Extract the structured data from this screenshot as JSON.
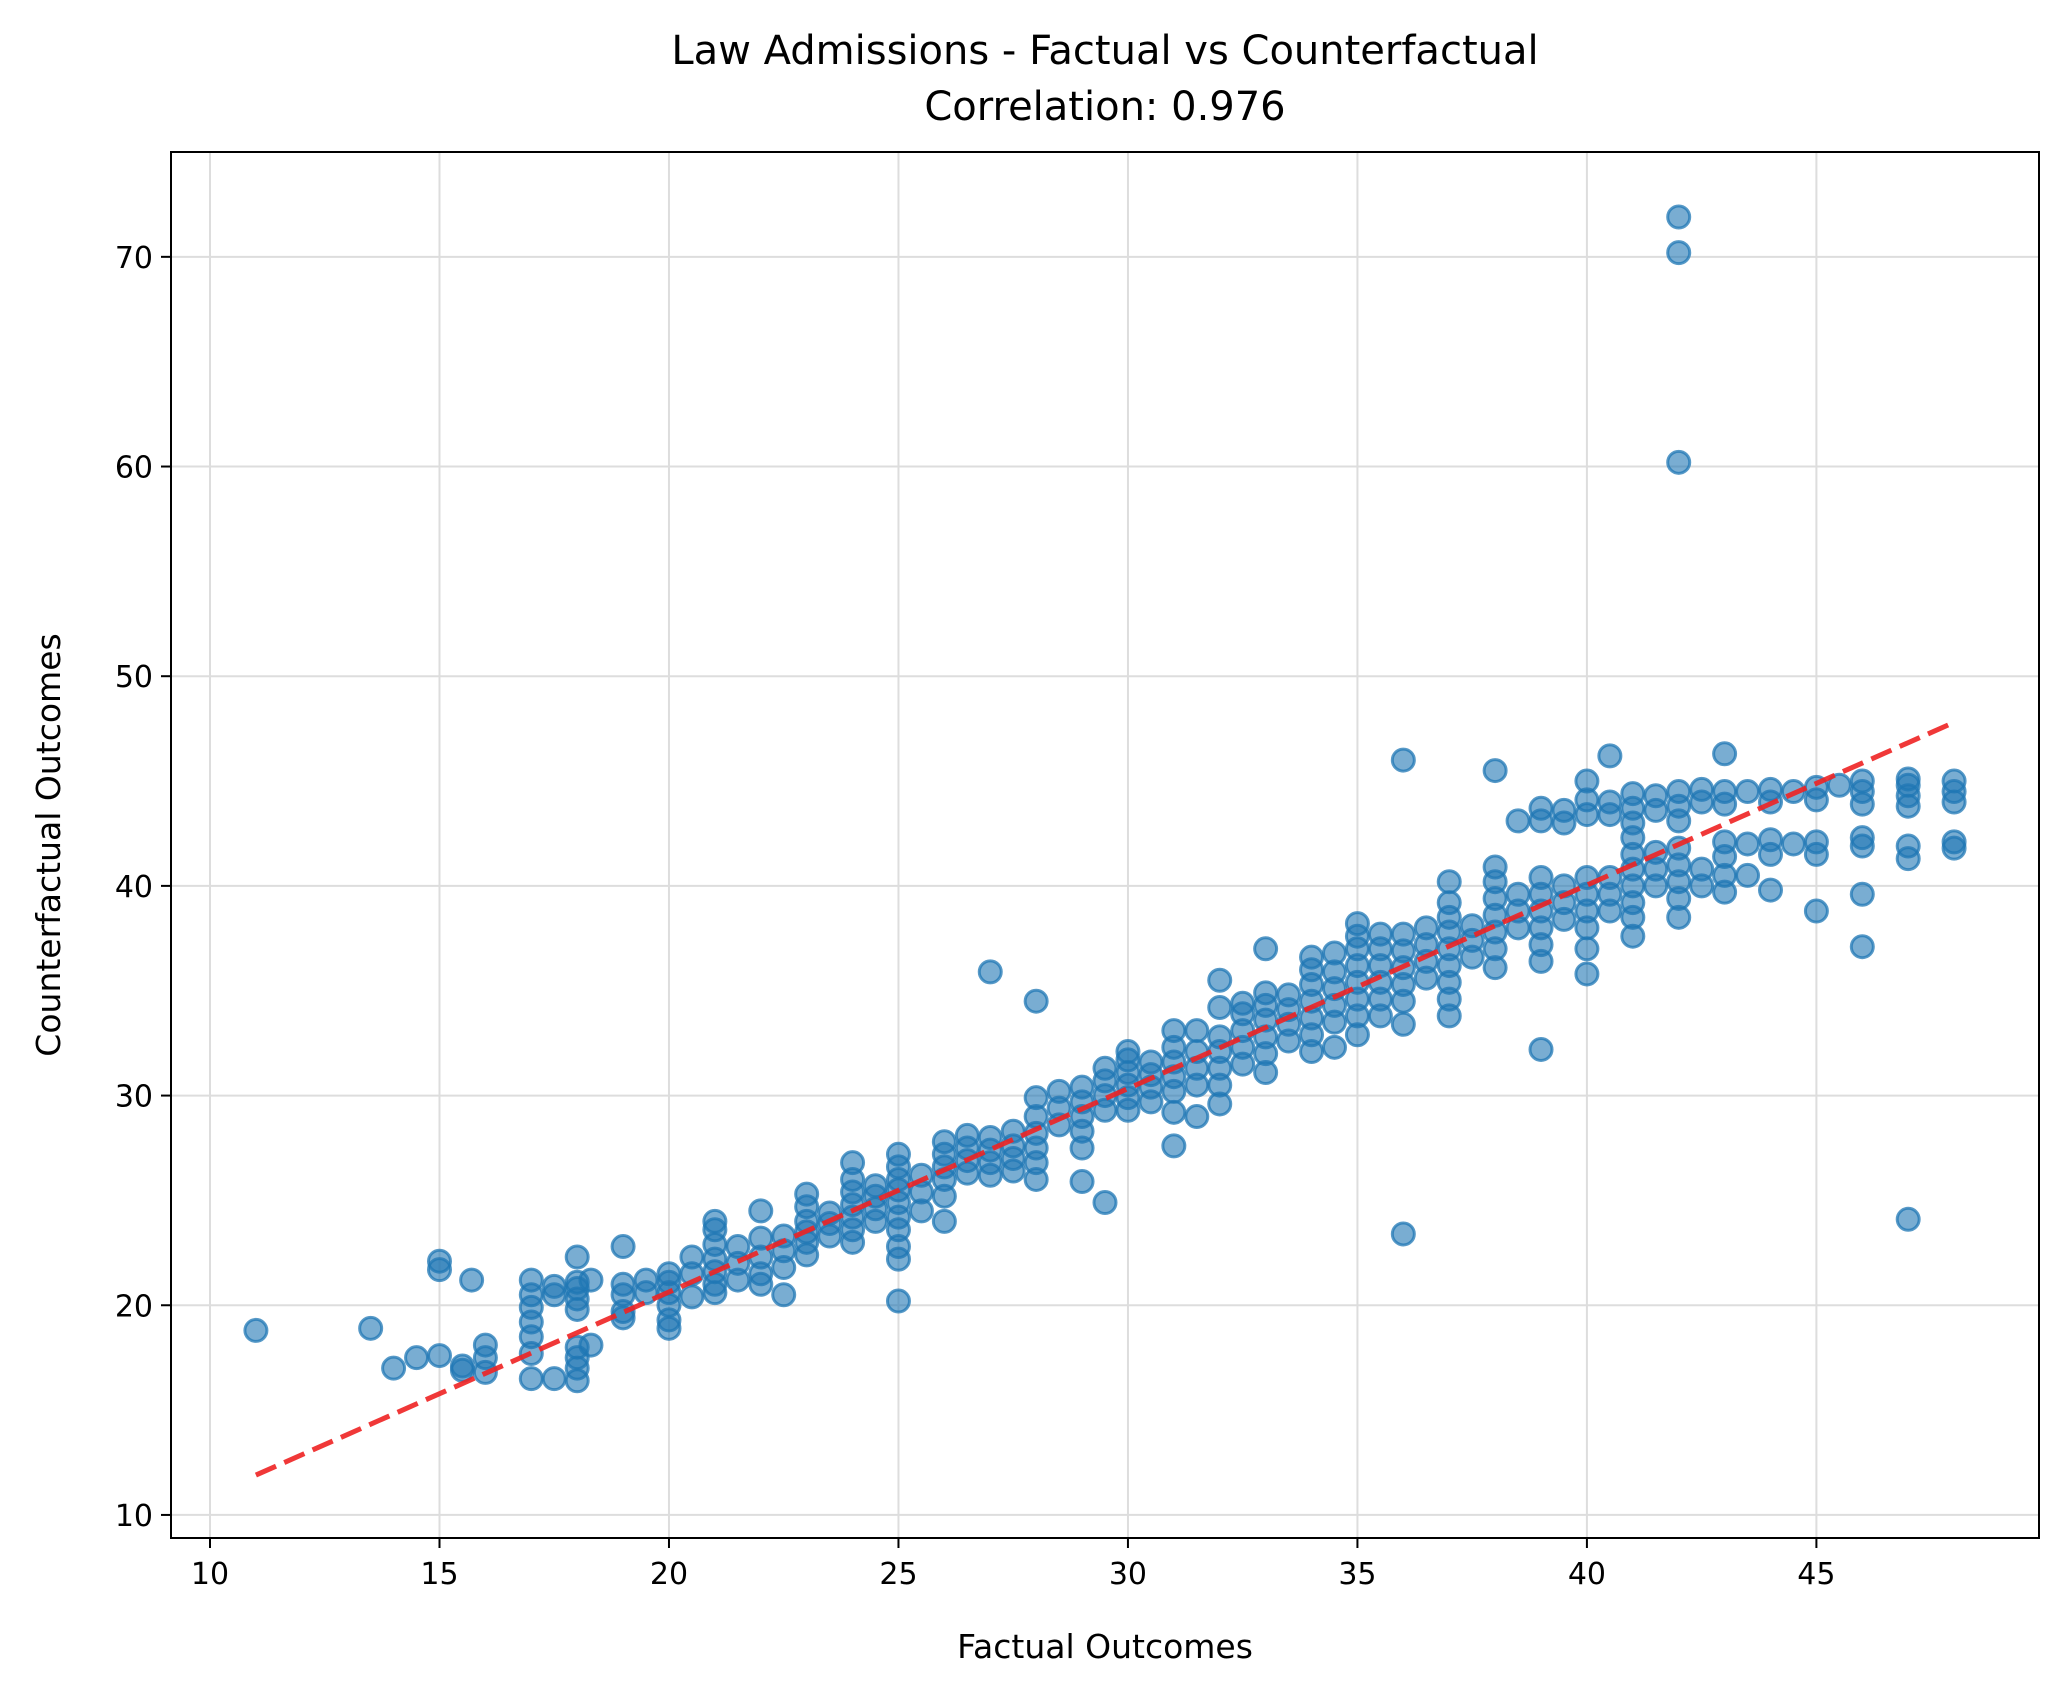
{
  "chart_data": {
    "type": "scatter",
    "title": "Law Admissions - Factual vs Counterfactual",
    "subtitle": "Correlation: 0.976",
    "xlabel": "Factual Outcomes",
    "ylabel": "Counterfactual Outcomes",
    "xlim": [
      9.15,
      49.85
    ],
    "ylim": [
      8.9,
      75.0
    ],
    "x_ticks": [
      10,
      15,
      20,
      25,
      30,
      35,
      40,
      45
    ],
    "y_ticks": [
      10,
      20,
      30,
      40,
      50,
      60,
      70
    ],
    "x_tick_labels": [
      "10",
      "15",
      "20",
      "25",
      "30",
      "35",
      "40",
      "45"
    ],
    "y_tick_labels": [
      "10",
      "20",
      "30",
      "40",
      "50",
      "60",
      "70"
    ],
    "grid": true,
    "colors": {
      "points": "#1f77b4",
      "fit_line": "#ee2222"
    },
    "fit_line": {
      "x": [
        11,
        48
      ],
      "y": [
        11.9,
        47.8
      ],
      "style": "dashed"
    },
    "points": [
      [
        11,
        18.8
      ],
      [
        13.5,
        18.9
      ],
      [
        14,
        17.0
      ],
      [
        14.5,
        17.5
      ],
      [
        15,
        17.6
      ],
      [
        15,
        21.7
      ],
      [
        15,
        22.1
      ],
      [
        15.5,
        17.1
      ],
      [
        15.5,
        16.9
      ],
      [
        15.7,
        21.2
      ],
      [
        16,
        16.8
      ],
      [
        16,
        17.5
      ],
      [
        16,
        18.1
      ],
      [
        17,
        16.5
      ],
      [
        17,
        17.7
      ],
      [
        17,
        18.5
      ],
      [
        17,
        19.2
      ],
      [
        17,
        19.9
      ],
      [
        17,
        20.5
      ],
      [
        17,
        21.2
      ],
      [
        17.5,
        16.5
      ],
      [
        17.5,
        20.5
      ],
      [
        17.5,
        20.9
      ],
      [
        18,
        16.4
      ],
      [
        18,
        17.0
      ],
      [
        18,
        17.5
      ],
      [
        18,
        18.0
      ],
      [
        18,
        19.8
      ],
      [
        18,
        20.3
      ],
      [
        18,
        20.8
      ],
      [
        18,
        21.1
      ],
      [
        18,
        22.3
      ],
      [
        18.3,
        18.1
      ],
      [
        18.3,
        21.2
      ],
      [
        19,
        19.4
      ],
      [
        19,
        19.7
      ],
      [
        19,
        20.5
      ],
      [
        19,
        21.0
      ],
      [
        19,
        22.8
      ],
      [
        19.5,
        20.6
      ],
      [
        19.5,
        21.2
      ],
      [
        20,
        18.9
      ],
      [
        20,
        19.3
      ],
      [
        20,
        20.0
      ],
      [
        20,
        20.6
      ],
      [
        20,
        21.1
      ],
      [
        20,
        21.5
      ],
      [
        20.5,
        20.4
      ],
      [
        20.5,
        21.5
      ],
      [
        20.5,
        22.3
      ],
      [
        21,
        20.6
      ],
      [
        21,
        21.0
      ],
      [
        21,
        21.6
      ],
      [
        21,
        22.2
      ],
      [
        21,
        22.9
      ],
      [
        21,
        23.6
      ],
      [
        21,
        24.0
      ],
      [
        21.5,
        21.2
      ],
      [
        21.5,
        22.0
      ],
      [
        21.5,
        22.8
      ],
      [
        22,
        21.0
      ],
      [
        22,
        21.5
      ],
      [
        22,
        22.3
      ],
      [
        22,
        23.2
      ],
      [
        22,
        24.5
      ],
      [
        22.5,
        20.5
      ],
      [
        22.5,
        21.8
      ],
      [
        22.5,
        22.6
      ],
      [
        22.5,
        23.3
      ],
      [
        23,
        22.4
      ],
      [
        23,
        23.0
      ],
      [
        23,
        23.5
      ],
      [
        23,
        24.0
      ],
      [
        23,
        24.7
      ],
      [
        23,
        25.3
      ],
      [
        23.5,
        23.3
      ],
      [
        23.5,
        23.9
      ],
      [
        23.5,
        24.4
      ],
      [
        24,
        23.0
      ],
      [
        24,
        23.6
      ],
      [
        24,
        24.2
      ],
      [
        24,
        24.8
      ],
      [
        24,
        25.4
      ],
      [
        24,
        26.0
      ],
      [
        24,
        26.8
      ],
      [
        24.5,
        24.0
      ],
      [
        24.5,
        24.6
      ],
      [
        24.5,
        25.2
      ],
      [
        24.5,
        25.7
      ],
      [
        25,
        20.2
      ],
      [
        25,
        22.2
      ],
      [
        25,
        22.8
      ],
      [
        25,
        23.6
      ],
      [
        25,
        24.2
      ],
      [
        25,
        24.9
      ],
      [
        25,
        25.5
      ],
      [
        25,
        26.0
      ],
      [
        25,
        26.6
      ],
      [
        25,
        27.2
      ],
      [
        25.5,
        24.5
      ],
      [
        25.5,
        25.4
      ],
      [
        25.5,
        26.2
      ],
      [
        26,
        24.0
      ],
      [
        26,
        25.2
      ],
      [
        26,
        26.0
      ],
      [
        26,
        26.6
      ],
      [
        26,
        27.2
      ],
      [
        26,
        27.8
      ],
      [
        26.5,
        26.3
      ],
      [
        26.5,
        26.9
      ],
      [
        26.5,
        27.5
      ],
      [
        26.5,
        28.1
      ],
      [
        27,
        26.2
      ],
      [
        27,
        26.8
      ],
      [
        27,
        27.4
      ],
      [
        27,
        28.0
      ],
      [
        27,
        35.9
      ],
      [
        27.5,
        26.4
      ],
      [
        27.5,
        27.0
      ],
      [
        27.5,
        27.6
      ],
      [
        27.5,
        28.3
      ],
      [
        28,
        26.0
      ],
      [
        28,
        26.8
      ],
      [
        28,
        27.5
      ],
      [
        28,
        28.2
      ],
      [
        28,
        29.0
      ],
      [
        28,
        29.9
      ],
      [
        28,
        34.5
      ],
      [
        28.5,
        28.6
      ],
      [
        28.5,
        29.4
      ],
      [
        28.5,
        30.2
      ],
      [
        29,
        25.9
      ],
      [
        29,
        27.5
      ],
      [
        29,
        28.3
      ],
      [
        29,
        29.0
      ],
      [
        29,
        29.7
      ],
      [
        29,
        30.4
      ],
      [
        29.5,
        24.9
      ],
      [
        29.5,
        29.3
      ],
      [
        29.5,
        30.0
      ],
      [
        29.5,
        30.7
      ],
      [
        29.5,
        31.3
      ],
      [
        30,
        29.3
      ],
      [
        30,
        29.9
      ],
      [
        30,
        30.5
      ],
      [
        30,
        31.1
      ],
      [
        30,
        31.7
      ],
      [
        30,
        32.1
      ],
      [
        30.5,
        29.7
      ],
      [
        30.5,
        30.4
      ],
      [
        30.5,
        31.0
      ],
      [
        30.5,
        31.6
      ],
      [
        31,
        27.6
      ],
      [
        31,
        29.2
      ],
      [
        31,
        30.2
      ],
      [
        31,
        30.9
      ],
      [
        31,
        31.6
      ],
      [
        31,
        32.3
      ],
      [
        31,
        33.1
      ],
      [
        31.5,
        29.0
      ],
      [
        31.5,
        30.5
      ],
      [
        31.5,
        31.3
      ],
      [
        31.5,
        32.1
      ],
      [
        31.5,
        33.1
      ],
      [
        32,
        29.6
      ],
      [
        32,
        30.5
      ],
      [
        32,
        31.3
      ],
      [
        32,
        32.1
      ],
      [
        32,
        32.8
      ],
      [
        32,
        34.2
      ],
      [
        32,
        35.5
      ],
      [
        32.5,
        31.5
      ],
      [
        32.5,
        32.3
      ],
      [
        32.5,
        33.1
      ],
      [
        32.5,
        33.9
      ],
      [
        32.5,
        34.4
      ],
      [
        33,
        31.1
      ],
      [
        33,
        32.0
      ],
      [
        33,
        32.8
      ],
      [
        33,
        33.6
      ],
      [
        33,
        34.3
      ],
      [
        33,
        34.9
      ],
      [
        33,
        37.0
      ],
      [
        33.5,
        32.6
      ],
      [
        33.5,
        33.4
      ],
      [
        33.5,
        34.1
      ],
      [
        33.5,
        34.8
      ],
      [
        34,
        32.1
      ],
      [
        34,
        32.9
      ],
      [
        34,
        33.7
      ],
      [
        34,
        34.5
      ],
      [
        34,
        35.3
      ],
      [
        34,
        36.0
      ],
      [
        34,
        36.6
      ],
      [
        34.5,
        32.3
      ],
      [
        34.5,
        33.5
      ],
      [
        34.5,
        34.3
      ],
      [
        34.5,
        35.1
      ],
      [
        34.5,
        35.9
      ],
      [
        34.5,
        36.8
      ],
      [
        35,
        32.9
      ],
      [
        35,
        33.8
      ],
      [
        35,
        34.6
      ],
      [
        35,
        35.4
      ],
      [
        35,
        36.2
      ],
      [
        35,
        37.0
      ],
      [
        35,
        37.6
      ],
      [
        35,
        38.2
      ],
      [
        35.5,
        33.8
      ],
      [
        35.5,
        34.6
      ],
      [
        35.5,
        35.4
      ],
      [
        35.5,
        36.2
      ],
      [
        35.5,
        37.0
      ],
      [
        35.5,
        37.7
      ],
      [
        36,
        23.4
      ],
      [
        36,
        33.4
      ],
      [
        36,
        34.5
      ],
      [
        36,
        35.3
      ],
      [
        36,
        36.1
      ],
      [
        36,
        36.9
      ],
      [
        36,
        37.7
      ],
      [
        36,
        46.0
      ],
      [
        36.5,
        35.6
      ],
      [
        36.5,
        36.4
      ],
      [
        36.5,
        37.2
      ],
      [
        36.5,
        38.0
      ],
      [
        37,
        33.8
      ],
      [
        37,
        34.6
      ],
      [
        37,
        35.4
      ],
      [
        37,
        36.2
      ],
      [
        37,
        37.0
      ],
      [
        37,
        37.8
      ],
      [
        37,
        38.5
      ],
      [
        37,
        39.2
      ],
      [
        37,
        40.2
      ],
      [
        37.5,
        36.6
      ],
      [
        37.5,
        37.4
      ],
      [
        37.5,
        38.1
      ],
      [
        38,
        36.1
      ],
      [
        38,
        37.0
      ],
      [
        38,
        37.8
      ],
      [
        38,
        38.6
      ],
      [
        38,
        39.4
      ],
      [
        38,
        40.2
      ],
      [
        38,
        40.9
      ],
      [
        38,
        45.5
      ],
      [
        38.5,
        38.0
      ],
      [
        38.5,
        38.8
      ],
      [
        38.5,
        39.6
      ],
      [
        38.5,
        43.1
      ],
      [
        39,
        32.2
      ],
      [
        39,
        36.4
      ],
      [
        39,
        37.2
      ],
      [
        39,
        38.0
      ],
      [
        39,
        38.8
      ],
      [
        39,
        39.6
      ],
      [
        39,
        40.4
      ],
      [
        39,
        43.1
      ],
      [
        39,
        43.7
      ],
      [
        39.5,
        38.4
      ],
      [
        39.5,
        39.2
      ],
      [
        39.5,
        40.0
      ],
      [
        39.5,
        43.0
      ],
      [
        39.5,
        43.6
      ],
      [
        40,
        35.8
      ],
      [
        40,
        37.0
      ],
      [
        40,
        38.0
      ],
      [
        40,
        38.8
      ],
      [
        40,
        39.6
      ],
      [
        40,
        40.4
      ],
      [
        40,
        43.4
      ],
      [
        40,
        44.1
      ],
      [
        40,
        45.0
      ],
      [
        40.5,
        38.8
      ],
      [
        40.5,
        39.6
      ],
      [
        40.5,
        40.4
      ],
      [
        40.5,
        43.4
      ],
      [
        40.5,
        44.0
      ],
      [
        40.5,
        46.2
      ],
      [
        41,
        37.6
      ],
      [
        41,
        38.5
      ],
      [
        41,
        39.2
      ],
      [
        41,
        40.0
      ],
      [
        41,
        40.8
      ],
      [
        41,
        41.5
      ],
      [
        41,
        42.3
      ],
      [
        41,
        43.0
      ],
      [
        41,
        43.7
      ],
      [
        41,
        44.4
      ],
      [
        41.5,
        40.0
      ],
      [
        41.5,
        40.8
      ],
      [
        41.5,
        41.6
      ],
      [
        41.5,
        43.6
      ],
      [
        41.5,
        44.3
      ],
      [
        42,
        38.5
      ],
      [
        42,
        39.4
      ],
      [
        42,
        40.2
      ],
      [
        42,
        41.0
      ],
      [
        42,
        41.8
      ],
      [
        42,
        43.1
      ],
      [
        42,
        43.8
      ],
      [
        42,
        44.5
      ],
      [
        42,
        60.2
      ],
      [
        42,
        70.2
      ],
      [
        42,
        71.9
      ],
      [
        42.5,
        40.0
      ],
      [
        42.5,
        40.8
      ],
      [
        42.5,
        44.0
      ],
      [
        42.5,
        44.6
      ],
      [
        43,
        39.7
      ],
      [
        43,
        40.5
      ],
      [
        43,
        41.4
      ],
      [
        43,
        42.1
      ],
      [
        43,
        43.9
      ],
      [
        43,
        44.5
      ],
      [
        43,
        46.3
      ],
      [
        43.5,
        40.5
      ],
      [
        43.5,
        42.0
      ],
      [
        43.5,
        44.5
      ],
      [
        44,
        39.8
      ],
      [
        44,
        41.5
      ],
      [
        44,
        42.2
      ],
      [
        44,
        44.0
      ],
      [
        44,
        44.6
      ],
      [
        44.5,
        42.0
      ],
      [
        44.5,
        44.5
      ],
      [
        45,
        38.8
      ],
      [
        45,
        41.5
      ],
      [
        45,
        42.1
      ],
      [
        45,
        44.1
      ],
      [
        45,
        44.7
      ],
      [
        45.5,
        44.8
      ],
      [
        46,
        37.1
      ],
      [
        46,
        39.6
      ],
      [
        46,
        41.9
      ],
      [
        46,
        42.3
      ],
      [
        46,
        43.9
      ],
      [
        46,
        44.5
      ],
      [
        46,
        45.0
      ],
      [
        47,
        24.1
      ],
      [
        47,
        41.3
      ],
      [
        47,
        41.9
      ],
      [
        47,
        43.8
      ],
      [
        47,
        44.3
      ],
      [
        47,
        44.8
      ],
      [
        47,
        45.1
      ],
      [
        48,
        41.8
      ],
      [
        48,
        42.1
      ],
      [
        48,
        44.0
      ],
      [
        48,
        44.5
      ],
      [
        48,
        45.0
      ]
    ]
  }
}
